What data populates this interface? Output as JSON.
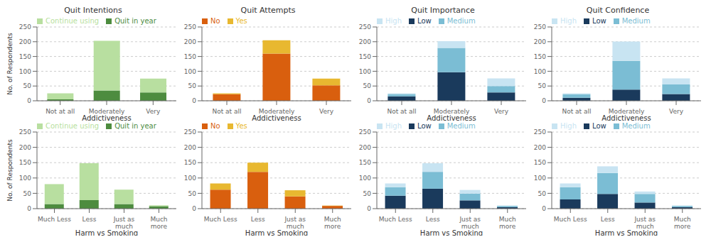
{
  "chart_data": [
    {
      "type": "bar",
      "title": "Quit Intentions",
      "xlabel": "Addictiveness",
      "ylabel": "No. of Respondents",
      "categories": [
        "Not at all",
        "Moderately",
        "Very"
      ],
      "series": [
        {
          "name": "Quit in year",
          "color": "#4d8c3f",
          "values": [
            5,
            35,
            28
          ]
        },
        {
          "name": "Continue using",
          "color": "#b8dfa0",
          "values": [
            20,
            168,
            47
          ]
        }
      ],
      "stacked": true,
      "ylim": [
        0,
        250
      ],
      "yticks": [
        0,
        50,
        100,
        150,
        200,
        250
      ],
      "grid": true,
      "legend": "upper left"
    },
    {
      "type": "bar",
      "title": "Quit Attempts",
      "xlabel": "Addictiveness",
      "categories": [
        "Not at all",
        "Moderately",
        "Very"
      ],
      "series": [
        {
          "name": "No",
          "color": "#d95f0e",
          "values": [
            22,
            160,
            52
          ]
        },
        {
          "name": "Yes",
          "color": "#e8b830",
          "values": [
            3,
            45,
            23
          ]
        }
      ],
      "stacked": true,
      "ylim": [
        0,
        250
      ],
      "yticks": [
        0,
        50,
        100,
        150,
        200,
        250
      ],
      "grid": true,
      "legend": "upper left"
    },
    {
      "type": "bar",
      "title": "Quit Importance",
      "xlabel": "Addictiveness",
      "categories": [
        "Not at all",
        "Moderately",
        "Very"
      ],
      "series": [
        {
          "name": "Low",
          "color": "#1a3a5c",
          "values": [
            15,
            97,
            28
          ]
        },
        {
          "name": "Medium",
          "color": "#7bbdd4",
          "values": [
            8,
            82,
            22
          ]
        },
        {
          "name": "High",
          "color": "#c8e4f2",
          "values": [
            2,
            23,
            26
          ]
        }
      ],
      "stacked": true,
      "ylim": [
        0,
        250
      ],
      "yticks": [
        0,
        50,
        100,
        150,
        200,
        250
      ],
      "grid": true,
      "legend": "upper left"
    },
    {
      "type": "bar",
      "title": "Quit Confidence",
      "xlabel": "Addictiveness",
      "categories": [
        "Not at all",
        "Moderately",
        "Very"
      ],
      "series": [
        {
          "name": "Low",
          "color": "#1a3a5c",
          "values": [
            10,
            38,
            23
          ]
        },
        {
          "name": "Medium",
          "color": "#7bbdd4",
          "values": [
            12,
            97,
            32
          ]
        },
        {
          "name": "High",
          "color": "#c8e4f2",
          "values": [
            3,
            66,
            21
          ]
        }
      ],
      "stacked": true,
      "ylim": [
        0,
        250
      ],
      "yticks": [
        0,
        50,
        100,
        150,
        200,
        250
      ],
      "grid": true,
      "legend": "upper left"
    },
    {
      "type": "bar",
      "xlabel": "Harm vs Smoking",
      "ylabel": "No. of Respondents",
      "categories": [
        "Much Less",
        "Less",
        "Just as\nmuch",
        "Much\nmore"
      ],
      "series": [
        {
          "name": "Quit in year",
          "color": "#4d8c3f",
          "values": [
            15,
            28,
            15,
            8
          ]
        },
        {
          "name": "Continue using",
          "color": "#b8dfa0",
          "values": [
            65,
            120,
            47,
            3
          ]
        }
      ],
      "stacked": true,
      "ylim": [
        0,
        250
      ],
      "yticks": [
        0,
        50,
        100,
        150,
        200,
        250
      ],
      "grid": true,
      "legend": "upper left"
    },
    {
      "type": "bar",
      "xlabel": "Harm vs Smoking",
      "categories": [
        "Much Less",
        "Less",
        "Just as\nmuch",
        "Much\nmore"
      ],
      "series": [
        {
          "name": "No",
          "color": "#d95f0e",
          "values": [
            62,
            120,
            40,
            9
          ]
        },
        {
          "name": "Yes",
          "color": "#e8b830",
          "values": [
            20,
            30,
            20,
            1
          ]
        }
      ],
      "stacked": true,
      "ylim": [
        0,
        250
      ],
      "yticks": [
        0,
        50,
        100,
        150,
        200,
        250
      ],
      "grid": true,
      "legend": "upper left"
    },
    {
      "type": "bar",
      "xlabel": "Harm vs Smoking",
      "categories": [
        "Much Less",
        "Less",
        "Just as\nmuch",
        "Much\nmore"
      ],
      "series": [
        {
          "name": "Low",
          "color": "#1a3a5c",
          "values": [
            42,
            65,
            27,
            5
          ]
        },
        {
          "name": "Medium",
          "color": "#7bbdd4",
          "values": [
            28,
            55,
            22,
            4
          ]
        },
        {
          "name": "High",
          "color": "#c8e4f2",
          "values": [
            12,
            28,
            12,
            1
          ]
        }
      ],
      "stacked": true,
      "ylim": [
        0,
        250
      ],
      "yticks": [
        0,
        50,
        100,
        150,
        200,
        250
      ],
      "grid": true,
      "legend": "upper left"
    },
    {
      "type": "bar",
      "xlabel": "Harm vs Smoking",
      "categories": [
        "Much Less",
        "Less",
        "Just as\nmuch",
        "Much\nmore"
      ],
      "series": [
        {
          "name": "Low",
          "color": "#1a3a5c",
          "values": [
            30,
            48,
            20,
            5
          ]
        },
        {
          "name": "Medium",
          "color": "#7bbdd4",
          "values": [
            40,
            68,
            28,
            4
          ]
        },
        {
          "name": "High",
          "color": "#c8e4f2",
          "values": [
            12,
            22,
            8,
            1
          ]
        }
      ],
      "stacked": true,
      "ylim": [
        0,
        250
      ],
      "yticks": [
        0,
        50,
        100,
        150,
        200,
        250
      ],
      "grid": true,
      "legend": "upper left"
    }
  ]
}
